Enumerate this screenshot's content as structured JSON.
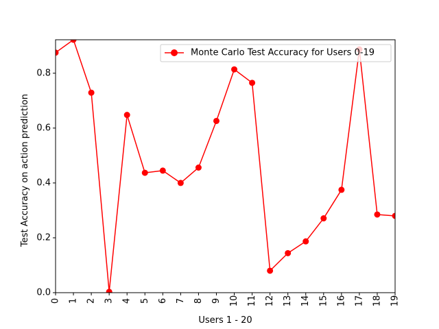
{
  "chart_data": {
    "type": "line",
    "x": [
      0,
      1,
      2,
      3,
      4,
      5,
      6,
      7,
      8,
      9,
      10,
      11,
      12,
      13,
      14,
      15,
      16,
      17,
      18,
      19
    ],
    "xticks": [
      "0",
      "1",
      "2",
      "3",
      "4",
      "5",
      "6",
      "7",
      "8",
      "9",
      "10",
      "11",
      "12",
      "13",
      "14",
      "15",
      "16",
      "17",
      "18",
      "19"
    ],
    "series": [
      {
        "name": "Monte Carlo Test Accuracy for Users 0-19",
        "values": [
          0.875,
          0.922,
          0.729,
          0.003,
          0.648,
          0.437,
          0.445,
          0.4,
          0.456,
          0.626,
          0.814,
          0.765,
          0.08,
          0.144,
          0.187,
          0.271,
          0.375,
          0.887,
          0.285,
          0.28
        ],
        "color": "#ff0000"
      }
    ],
    "yticks": [
      "0.0",
      "0.2",
      "0.4",
      "0.6",
      "0.8"
    ],
    "ytick_values": [
      0.0,
      0.2,
      0.4,
      0.6,
      0.8
    ],
    "xlabel": "Users 1 - 20",
    "ylabel": "Test Accuracy on action prediction",
    "xlim": [
      0,
      19
    ],
    "ylim": [
      0,
      0.922
    ],
    "grid": false,
    "legend_position": "top-right"
  }
}
